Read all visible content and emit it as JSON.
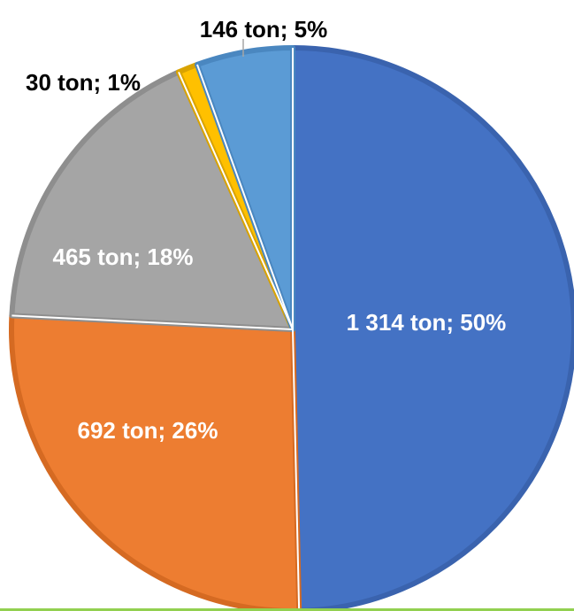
{
  "chart_data": {
    "type": "pie",
    "unit": "ton",
    "start_angle_deg": 0,
    "direction": "clockwise",
    "slices": [
      {
        "value": 1314,
        "percent": 50,
        "label": "1 314 ton; 50%",
        "color": "#4472C4",
        "border": "#3A63AE",
        "label_color": "#FFFFFF",
        "label_placement": "inside"
      },
      {
        "value": 692,
        "percent": 26,
        "label": "692 ton; 26%",
        "color": "#ED7D31",
        "border": "#D56A22",
        "label_color": "#FFFFFF",
        "label_placement": "inside"
      },
      {
        "value": 465,
        "percent": 18,
        "label": "465 ton; 18%",
        "color": "#A5A5A5",
        "border": "#8E8E8E",
        "label_color": "#FFFFFF",
        "label_placement": "inside"
      },
      {
        "value": 30,
        "percent": 1,
        "label": "30 ton; 1%",
        "color": "#FFC000",
        "border": "#D9A300",
        "label_color": "#000000",
        "label_placement": "outside"
      },
      {
        "value": 146,
        "percent": 5,
        "label": "146 ton; 5%",
        "color": "#5B9BD5",
        "border": "#4A87C0",
        "label_color": "#000000",
        "label_placement": "outside"
      }
    ]
  },
  "colors": {
    "accent_rule": "#92D050",
    "leader_line": "#A6A6A6"
  }
}
